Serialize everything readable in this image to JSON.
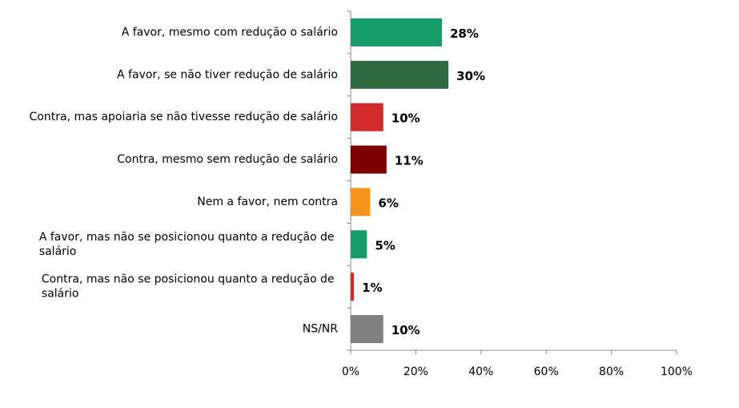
{
  "chart_data": {
    "type": "hbar",
    "categories": [
      "A favor, mesmo com redução o salário",
      "A favor, se não tiver redução de salário",
      "Contra, mas apoiaria se não tivesse redução de salário",
      "Contra, mesmo sem redução de salário",
      "Nem a favor, nem contra",
      "A favor, mas não se posicionou quanto a redução de salário",
      "Contra, mas não se posicionou quanto a redução de salário",
      "NS/NR"
    ],
    "values": [
      28,
      30,
      10,
      11,
      6,
      5,
      1,
      10
    ],
    "value_labels": [
      "28%",
      "30%",
      "10%",
      "11%",
      "6%",
      "5%",
      "1%",
      "10%"
    ],
    "colors": [
      "#169b6b",
      "#2e6a3e",
      "#d22b2b",
      "#7c0000",
      "#f7941d",
      "#169b6b",
      "#d22b2b",
      "#808080"
    ],
    "xlim": [
      0,
      100
    ],
    "xticks": [
      {
        "value": 0,
        "label": "0%"
      },
      {
        "value": 20,
        "label": "20%"
      },
      {
        "value": 40,
        "label": "40%"
      },
      {
        "value": 60,
        "label": "60%"
      },
      {
        "value": 80,
        "label": "80%"
      },
      {
        "value": 100,
        "label": "100%"
      }
    ]
  }
}
